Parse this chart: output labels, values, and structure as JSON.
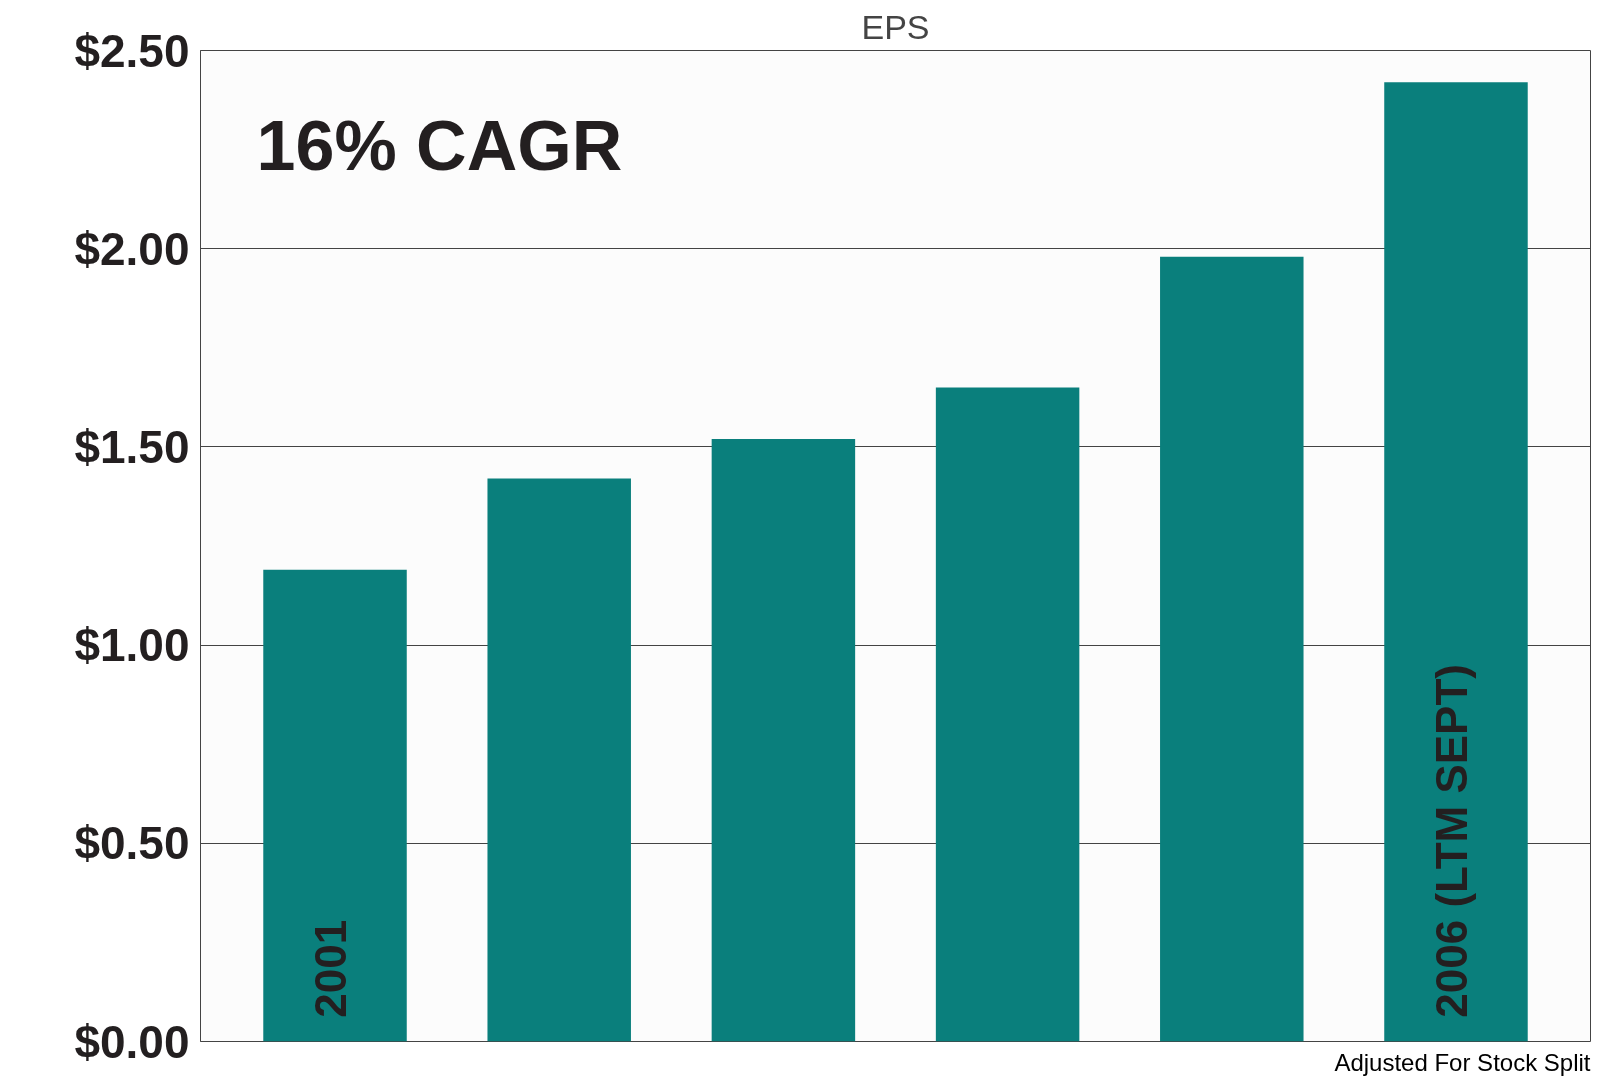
{
  "chart_data": {
    "type": "bar",
    "title": "EPS",
    "categories": [
      "2001",
      null,
      null,
      null,
      null,
      "2006 (LTM SEPT)"
    ],
    "values": [
      1.19,
      1.42,
      1.52,
      1.65,
      1.98,
      2.42
    ],
    "color": "#0a7f7c",
    "ylim": [
      0,
      2.5
    ],
    "yticks": [
      {
        "value": 0,
        "label": "$0.00"
      },
      {
        "value": 0.5,
        "label": "$0.50"
      },
      {
        "value": 1,
        "label": "$1.00"
      },
      {
        "value": 1.5,
        "label": "$1.50"
      },
      {
        "value": 2,
        "label": "$2.00"
      },
      {
        "value": 2.5,
        "label": "$2.50"
      }
    ],
    "grid": "y",
    "tick_labels": "y",
    "annotations": [
      "16% CAGR",
      "Adjusted For Stock Split"
    ]
  }
}
